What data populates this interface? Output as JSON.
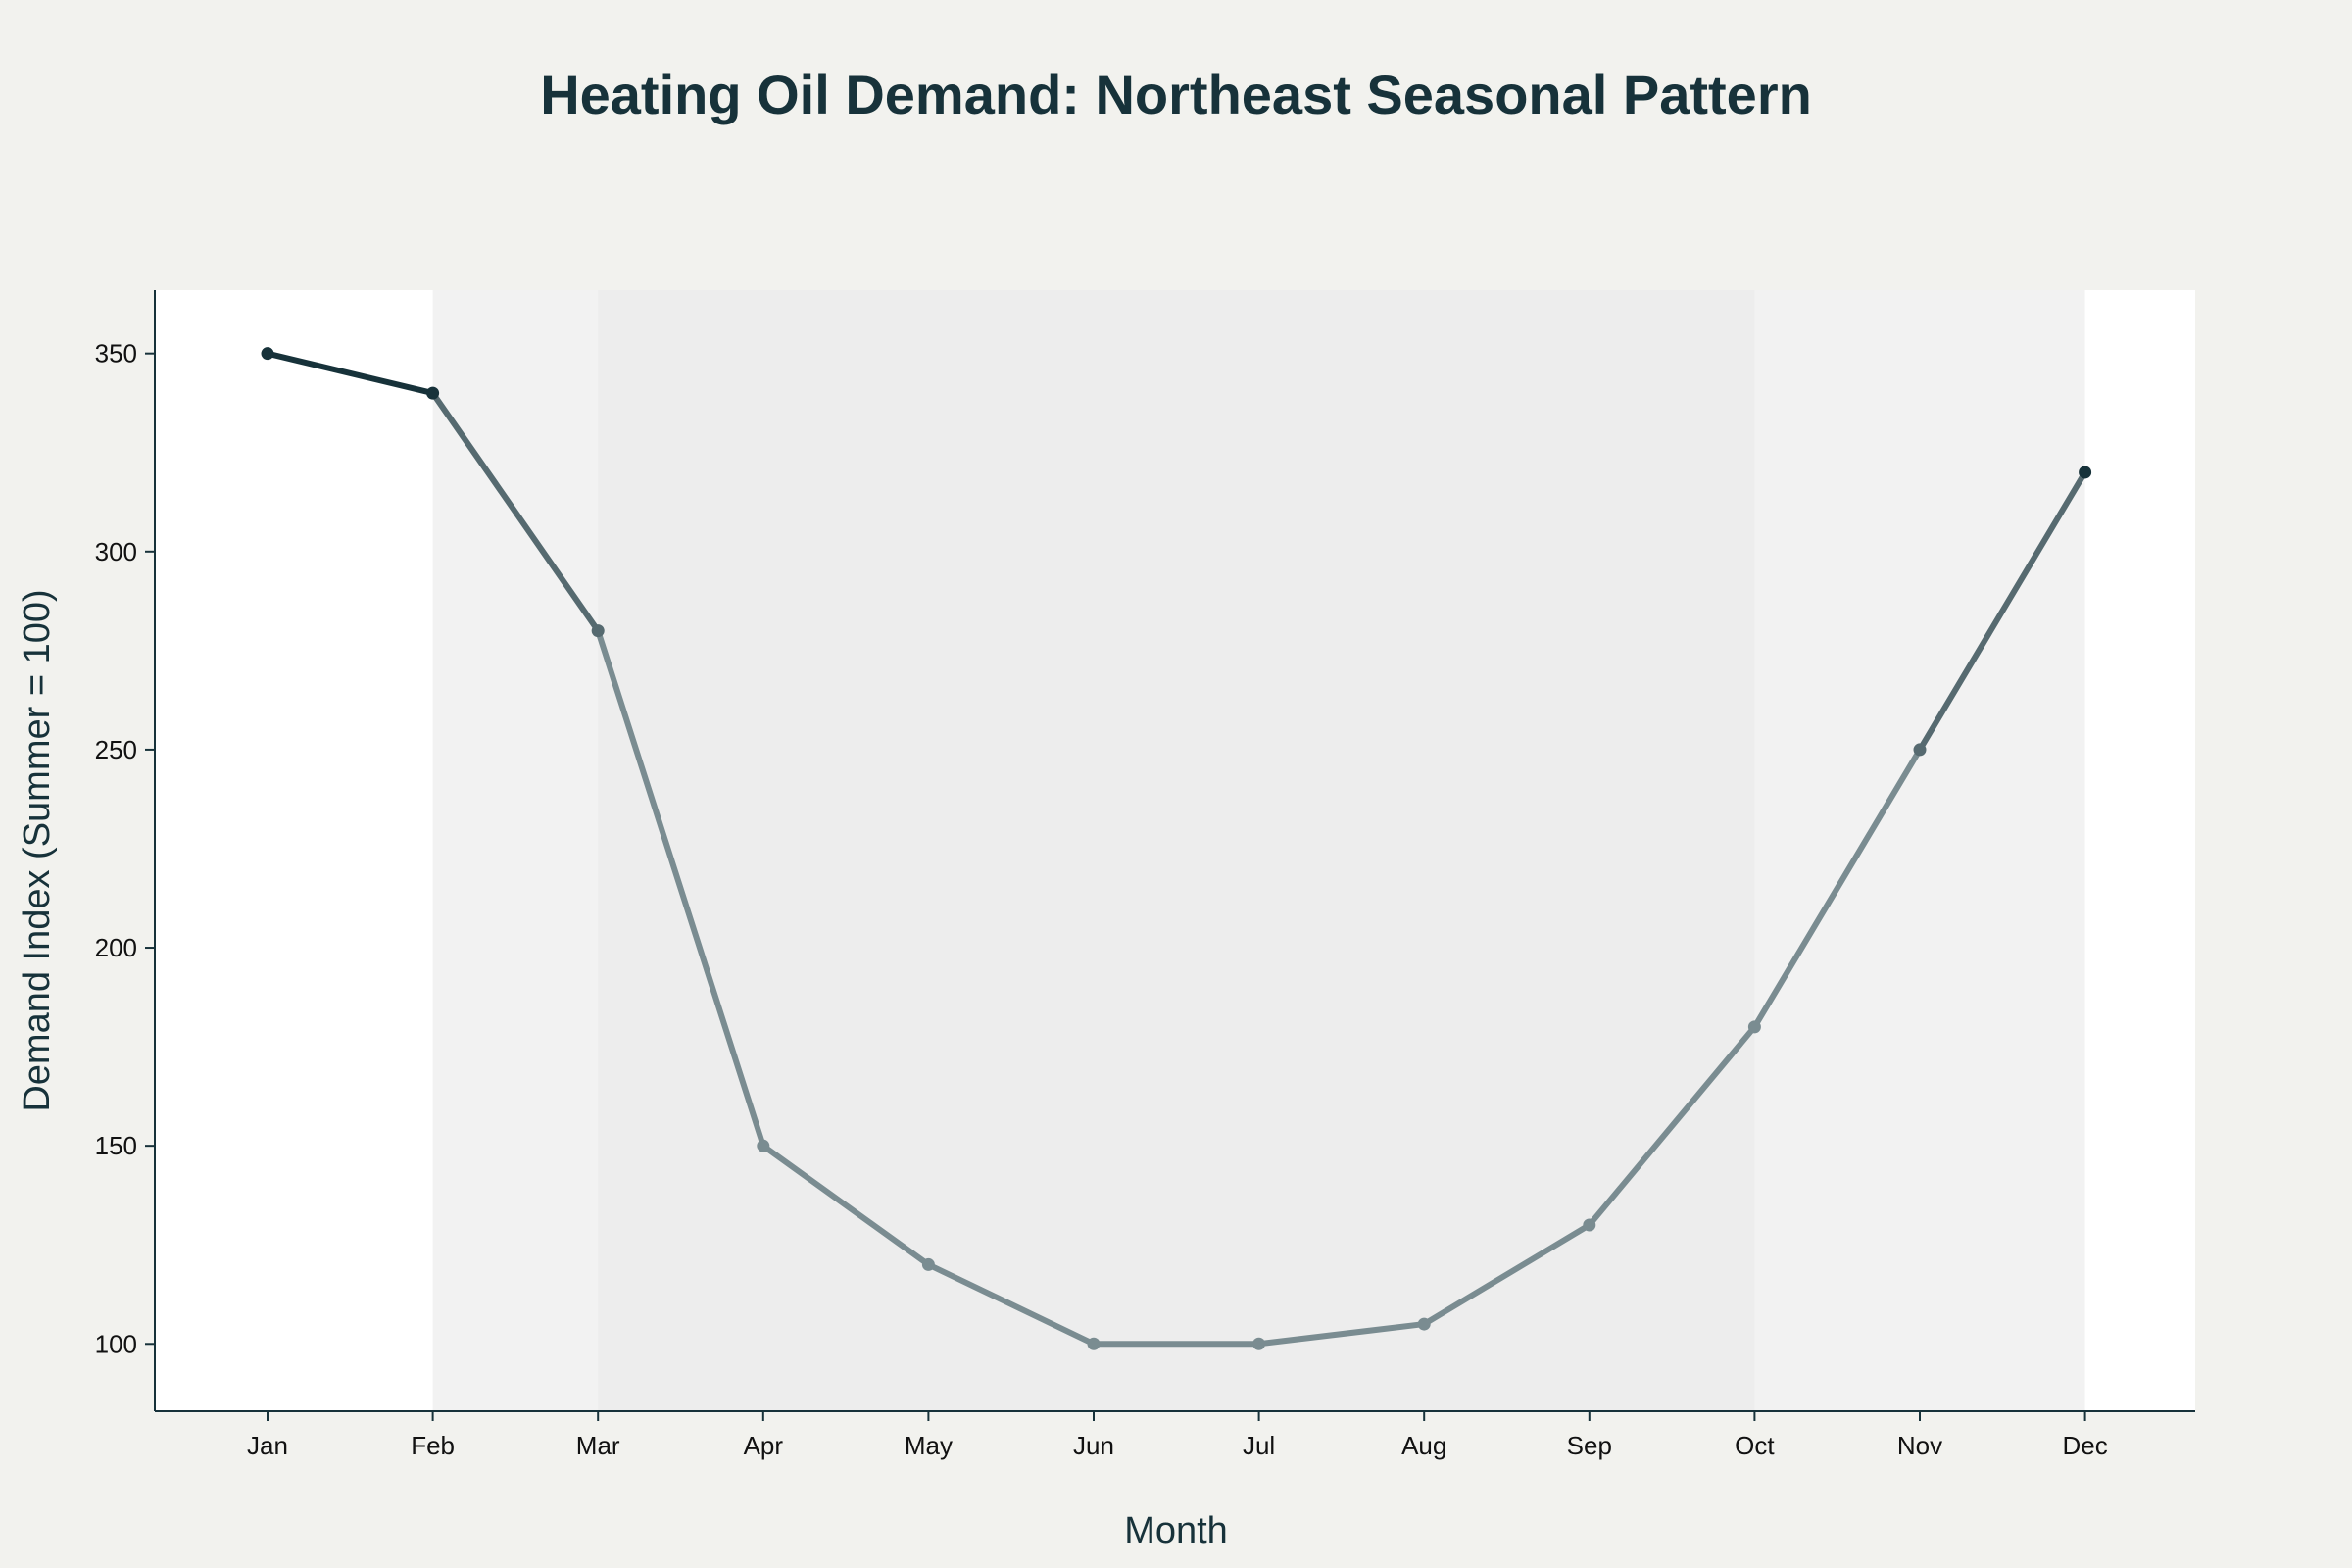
{
  "chart_data": {
    "type": "line",
    "title": "Heating Oil Demand: Northeast Seasonal Pattern",
    "xlabel": "Month",
    "ylabel": "Demand Index (Summer = 100)",
    "categories": [
      "Jan",
      "Feb",
      "Mar",
      "Apr",
      "May",
      "Jun",
      "Jul",
      "Aug",
      "Sep",
      "Oct",
      "Nov",
      "Dec"
    ],
    "values": [
      350,
      340,
      280,
      150,
      120,
      100,
      100,
      105,
      130,
      180,
      250,
      320
    ],
    "ylim": [
      83,
      366
    ],
    "yticks": [
      100,
      150,
      200,
      250,
      300,
      350
    ],
    "grid": false,
    "legend": "none",
    "shaded_bands": [
      {
        "from": "Feb",
        "to": "Dec",
        "color": "#f2f2f2"
      },
      {
        "from": "Mar",
        "to": "Oct",
        "color": "#ededed"
      }
    ],
    "colors": {
      "page_background": "#f2f2ee",
      "plot_background": "#ffffff",
      "title": "#17323a",
      "line_winter": "#17323a",
      "line_shoulder": "#566a70",
      "line_summer": "#7a8c91",
      "axis": "#17323a",
      "tick_label": "#111111"
    }
  }
}
